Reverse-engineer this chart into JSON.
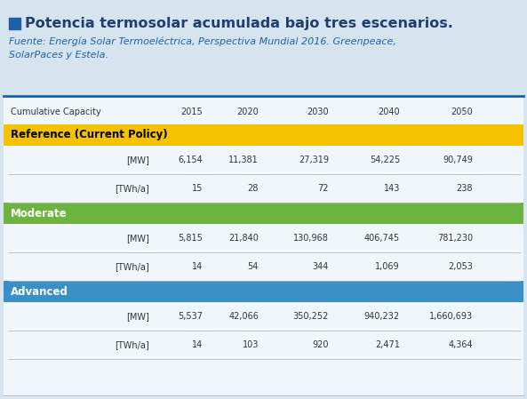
{
  "title": "Potencia termosolar acumulada bajo tres escenarios.",
  "title_square_color": "#1f5fa6",
  "source_line1": "Fuente: Energía Solar Termoeléctrica, Perspectiva Mundial 2016. Greenpeace,",
  "source_line2": "SolarPaces y Estela.",
  "bg_color": "#d6e4f0",
  "table_bg": "#f0f6fb",
  "divider_color": "#1f5fa6",
  "col_header": [
    "Cumulative Capacity",
    "2015",
    "2020",
    "2030",
    "2040",
    "2050"
  ],
  "scenarios": [
    {
      "name": "Reference (Current Policy)",
      "color": "#f5c200",
      "text_color": "#000000",
      "rows": [
        {
          "label": "[MW]",
          "values": [
            "6,154",
            "11,381",
            "27,319",
            "54,225",
            "90,749"
          ]
        },
        {
          "label": "[TWh/a]",
          "values": [
            "15",
            "28",
            "72",
            "143",
            "238"
          ]
        }
      ]
    },
    {
      "name": "Moderate",
      "color": "#6db33f",
      "text_color": "#ffffff",
      "rows": [
        {
          "label": "[MW]",
          "values": [
            "5,815",
            "21,840",
            "130,968",
            "406,745",
            "781,230"
          ]
        },
        {
          "label": "[TWh/a]",
          "values": [
            "14",
            "54",
            "344",
            "1,069",
            "2,053"
          ]
        }
      ]
    },
    {
      "name": "Advanced",
      "color": "#3a8fc7",
      "text_color": "#ffffff",
      "rows": [
        {
          "label": "[MW]",
          "values": [
            "5,537",
            "42,066",
            "350,252",
            "940,232",
            "1,660,693"
          ]
        },
        {
          "label": "[TWh/a]",
          "values": [
            "14",
            "103",
            "920",
            "2,471",
            "4,364"
          ]
        }
      ]
    }
  ]
}
